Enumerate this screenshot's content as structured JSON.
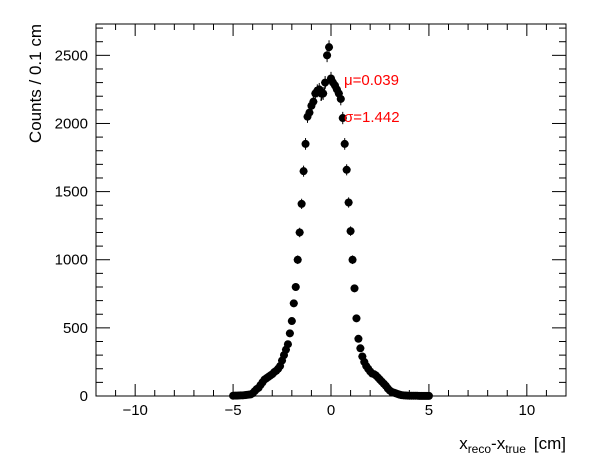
{
  "chart_data": {
    "type": "scatter",
    "title": "",
    "xlabel": {
      "base1": "x",
      "sub1": "reco",
      "sep": "-",
      "base2": "x",
      "sub2": "true",
      "unit": "[cm]"
    },
    "ylabel": "Counts / 0.1 cm",
    "xlim": [
      -12,
      12
    ],
    "ylim": [
      0,
      2730
    ],
    "xticks": [
      -10,
      -5,
      0,
      5,
      10
    ],
    "yticks": [
      0,
      500,
      1000,
      1500,
      2000,
      2500
    ],
    "grid": false,
    "legend": "none",
    "annotations": [
      {
        "id": "mu",
        "text": "μ=0.039"
      },
      {
        "id": "sigma",
        "text": "σ=1.442"
      }
    ],
    "marker_color": "#000000",
    "annotation_color": "#ff0000",
    "fit_mean": 0.039,
    "fit_sigma": 1.442,
    "fit_peak": 2330,
    "series": [
      {
        "x": [
          -5.0,
          -4.9,
          -4.8,
          -4.7,
          -4.6,
          -4.5,
          -4.4,
          -4.3,
          -4.2,
          -4.1,
          -4.0,
          -3.9,
          -3.8,
          -3.7,
          -3.6,
          -3.5,
          -3.4,
          -3.3,
          -3.2,
          -3.1,
          -3.0,
          -2.9,
          -2.8,
          -2.7,
          -2.6,
          -2.5,
          -2.4,
          -2.3,
          -2.2,
          -2.1,
          -2.0,
          -1.9,
          -1.8,
          -1.7,
          -1.6,
          -1.5,
          -1.4,
          -1.3,
          -1.2,
          -1.1,
          -1.0,
          -0.9,
          -0.8,
          -0.7,
          -0.6,
          -0.5,
          -0.4,
          -0.3,
          -0.2,
          -0.1,
          0.0,
          0.1,
          0.2,
          0.3,
          0.4,
          0.5,
          0.6,
          0.7,
          0.8,
          0.9,
          1.0,
          1.1,
          1.2,
          1.3,
          1.4,
          1.5,
          1.6,
          1.7,
          1.8,
          1.9,
          2.0,
          2.1,
          2.2,
          2.3,
          2.4,
          2.5,
          2.6,
          2.7,
          2.8,
          2.9,
          3.0,
          3.1,
          3.2,
          3.3,
          3.4,
          3.5,
          3.6,
          3.7,
          3.8,
          3.9,
          4.0,
          4.1,
          4.2,
          4.3,
          4.4,
          4.5,
          4.6,
          4.7,
          4.8,
          4.9,
          5.0
        ],
        "y": [
          2,
          3,
          3,
          4,
          5,
          5,
          6,
          8,
          10,
          12,
          20,
          35,
          50,
          60,
          80,
          100,
          120,
          130,
          140,
          150,
          160,
          175,
          185,
          200,
          220,
          260,
          300,
          340,
          380,
          460,
          550,
          680,
          800,
          1000,
          1200,
          1410,
          1650,
          1850,
          2050,
          2080,
          2130,
          2160,
          2220,
          2240,
          2250,
          2220,
          2220,
          2300,
          2500,
          2560,
          2330,
          2300,
          2280,
          2250,
          2220,
          2180,
          2040,
          1850,
          1660,
          1420,
          1210,
          1000,
          790,
          570,
          420,
          350,
          290,
          250,
          220,
          200,
          180,
          165,
          160,
          150,
          135,
          120,
          105,
          90,
          75,
          55,
          40,
          30,
          25,
          20,
          15,
          10,
          6,
          5,
          4,
          3,
          2,
          2,
          2,
          2,
          2,
          1,
          1,
          1,
          1,
          1,
          1
        ]
      }
    ]
  }
}
